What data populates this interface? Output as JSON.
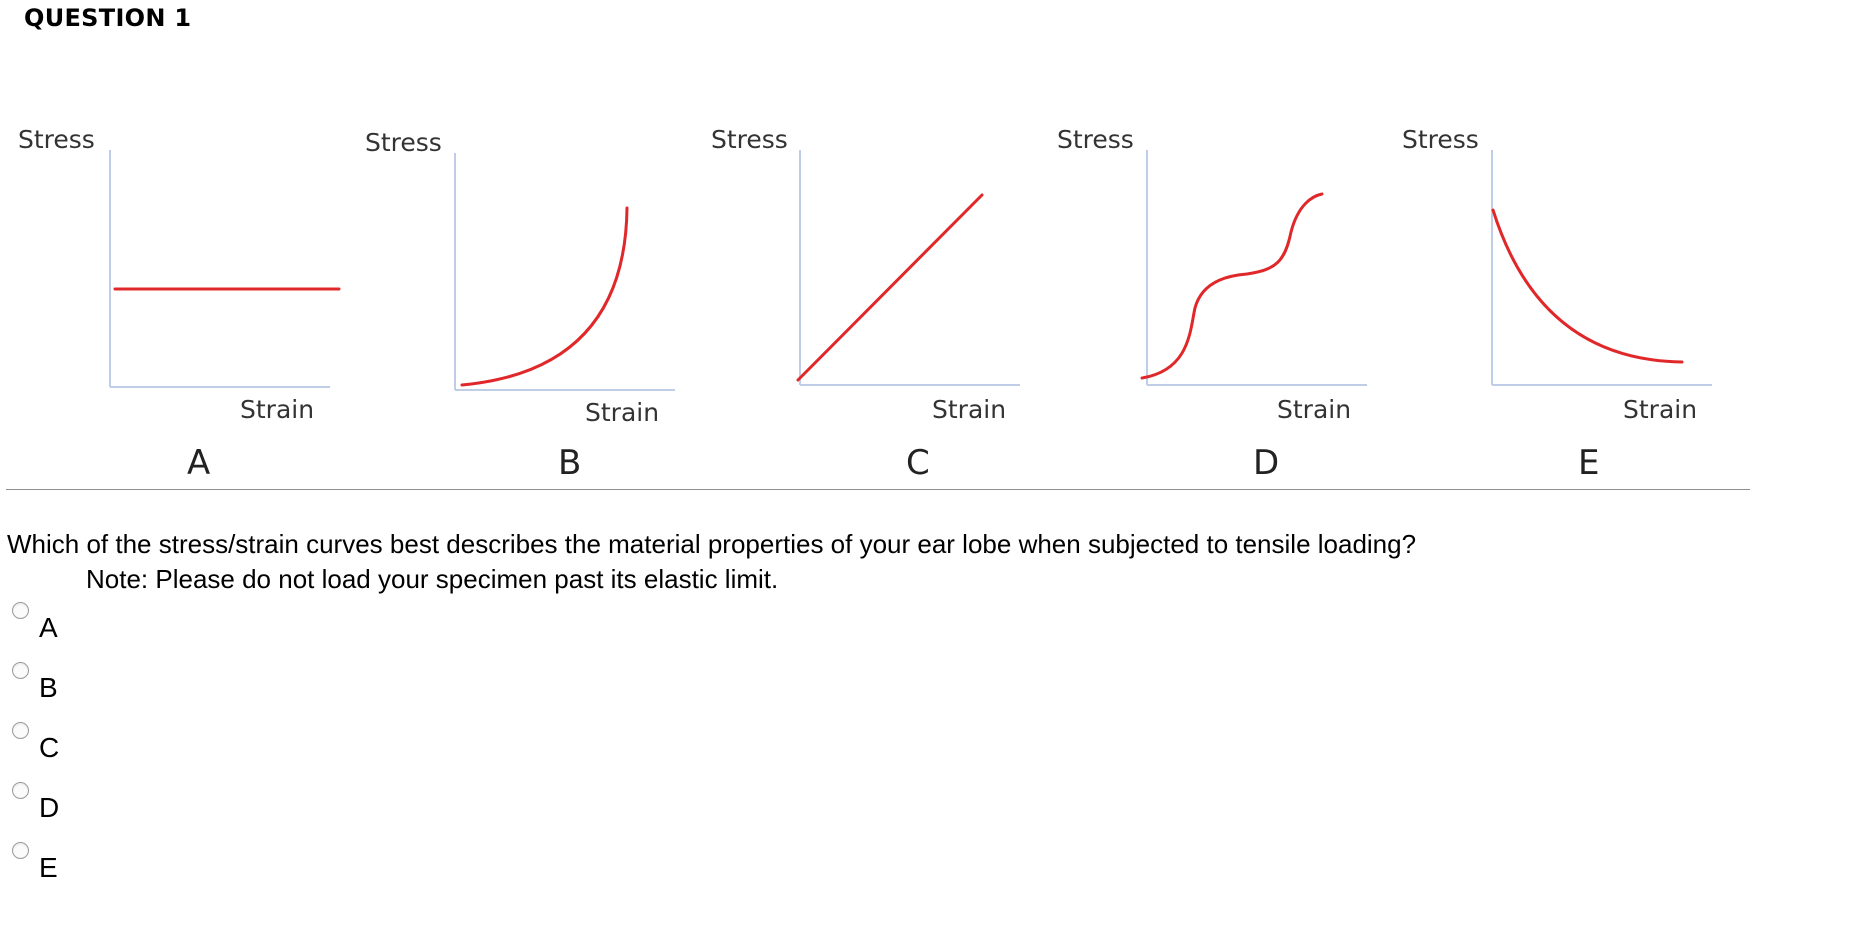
{
  "question": {
    "header": "QUESTION 1",
    "text": "Which of the stress/strain curves best describes the material properties of your ear lobe when subjected to tensile loading?",
    "note": "Note: Please do not load your specimen past its elastic limit."
  },
  "figure": {
    "curve_color": "#e0282a",
    "axis_color": "#c0cde8",
    "panels": [
      {
        "letter": "A",
        "y_label": "Stress",
        "x_label": "Strain",
        "shape": "constant"
      },
      {
        "letter": "B",
        "y_label": "Stress",
        "x_label": "Strain",
        "shape": "concave-up-increasing"
      },
      {
        "letter": "C",
        "y_label": "Stress",
        "x_label": "Strain",
        "shape": "linear-increasing"
      },
      {
        "letter": "D",
        "y_label": "Stress",
        "x_label": "Strain",
        "shape": "double-s-step"
      },
      {
        "letter": "E",
        "y_label": "Stress",
        "x_label": "Strain",
        "shape": "concave-up-decreasing"
      }
    ]
  },
  "answer_choices": [
    {
      "label": "A",
      "selected": false
    },
    {
      "label": "B",
      "selected": false
    },
    {
      "label": "C",
      "selected": false
    },
    {
      "label": "D",
      "selected": false
    },
    {
      "label": "E",
      "selected": false
    }
  ]
}
